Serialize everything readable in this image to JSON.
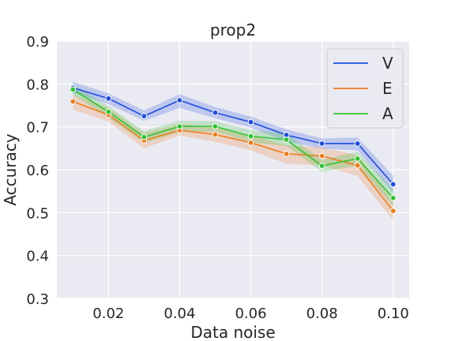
{
  "chart_data": {
    "type": "line",
    "title": "prop2",
    "xlabel": "Data noise",
    "ylabel": "Accuracy",
    "x": [
      0.01,
      0.02,
      0.03,
      0.04,
      0.05,
      0.06,
      0.07,
      0.08,
      0.09,
      0.1
    ],
    "xlim": [
      0.0055,
      0.1045
    ],
    "ylim": [
      0.3,
      0.9
    ],
    "xticks": [
      0.02,
      0.04,
      0.06,
      0.08,
      0.1
    ],
    "xtick_labels": [
      "0.02",
      "0.04",
      "0.06",
      "0.08",
      "0.10"
    ],
    "yticks": [
      0.3,
      0.4,
      0.5,
      0.6,
      0.7,
      0.8,
      0.9
    ],
    "ytick_labels": [
      "0.3",
      "0.4",
      "0.5",
      "0.6",
      "0.7",
      "0.8",
      "0.9"
    ],
    "grid": true,
    "legend_position": "top-right",
    "background_color": "#eaeaf2",
    "series": [
      {
        "name": "V",
        "color": "#1f4de0",
        "values": [
          0.791,
          0.766,
          0.725,
          0.762,
          0.733,
          0.711,
          0.681,
          0.661,
          0.661,
          0.566
        ],
        "ci_lower": [
          0.778,
          0.753,
          0.714,
          0.744,
          0.72,
          0.698,
          0.666,
          0.649,
          0.645,
          0.546
        ],
        "ci_upper": [
          0.805,
          0.778,
          0.738,
          0.776,
          0.746,
          0.724,
          0.694,
          0.673,
          0.675,
          0.586
        ]
      },
      {
        "name": "E",
        "color": "#f07d1a",
        "values": [
          0.759,
          0.728,
          0.668,
          0.692,
          0.682,
          0.663,
          0.637,
          0.632,
          0.61,
          0.504
        ],
        "ci_lower": [
          0.74,
          0.712,
          0.65,
          0.68,
          0.665,
          0.645,
          0.614,
          0.61,
          0.585,
          0.482
        ],
        "ci_upper": [
          0.776,
          0.744,
          0.685,
          0.707,
          0.699,
          0.68,
          0.657,
          0.652,
          0.634,
          0.526
        ]
      },
      {
        "name": "A",
        "color": "#2fc42f",
        "values": [
          0.787,
          0.735,
          0.676,
          0.701,
          0.701,
          0.678,
          0.67,
          0.609,
          0.626,
          0.534
        ],
        "ci_lower": [
          0.775,
          0.721,
          0.662,
          0.688,
          0.689,
          0.664,
          0.655,
          0.595,
          0.61,
          0.514
        ],
        "ci_upper": [
          0.799,
          0.748,
          0.69,
          0.714,
          0.713,
          0.692,
          0.685,
          0.623,
          0.642,
          0.555
        ]
      }
    ]
  }
}
